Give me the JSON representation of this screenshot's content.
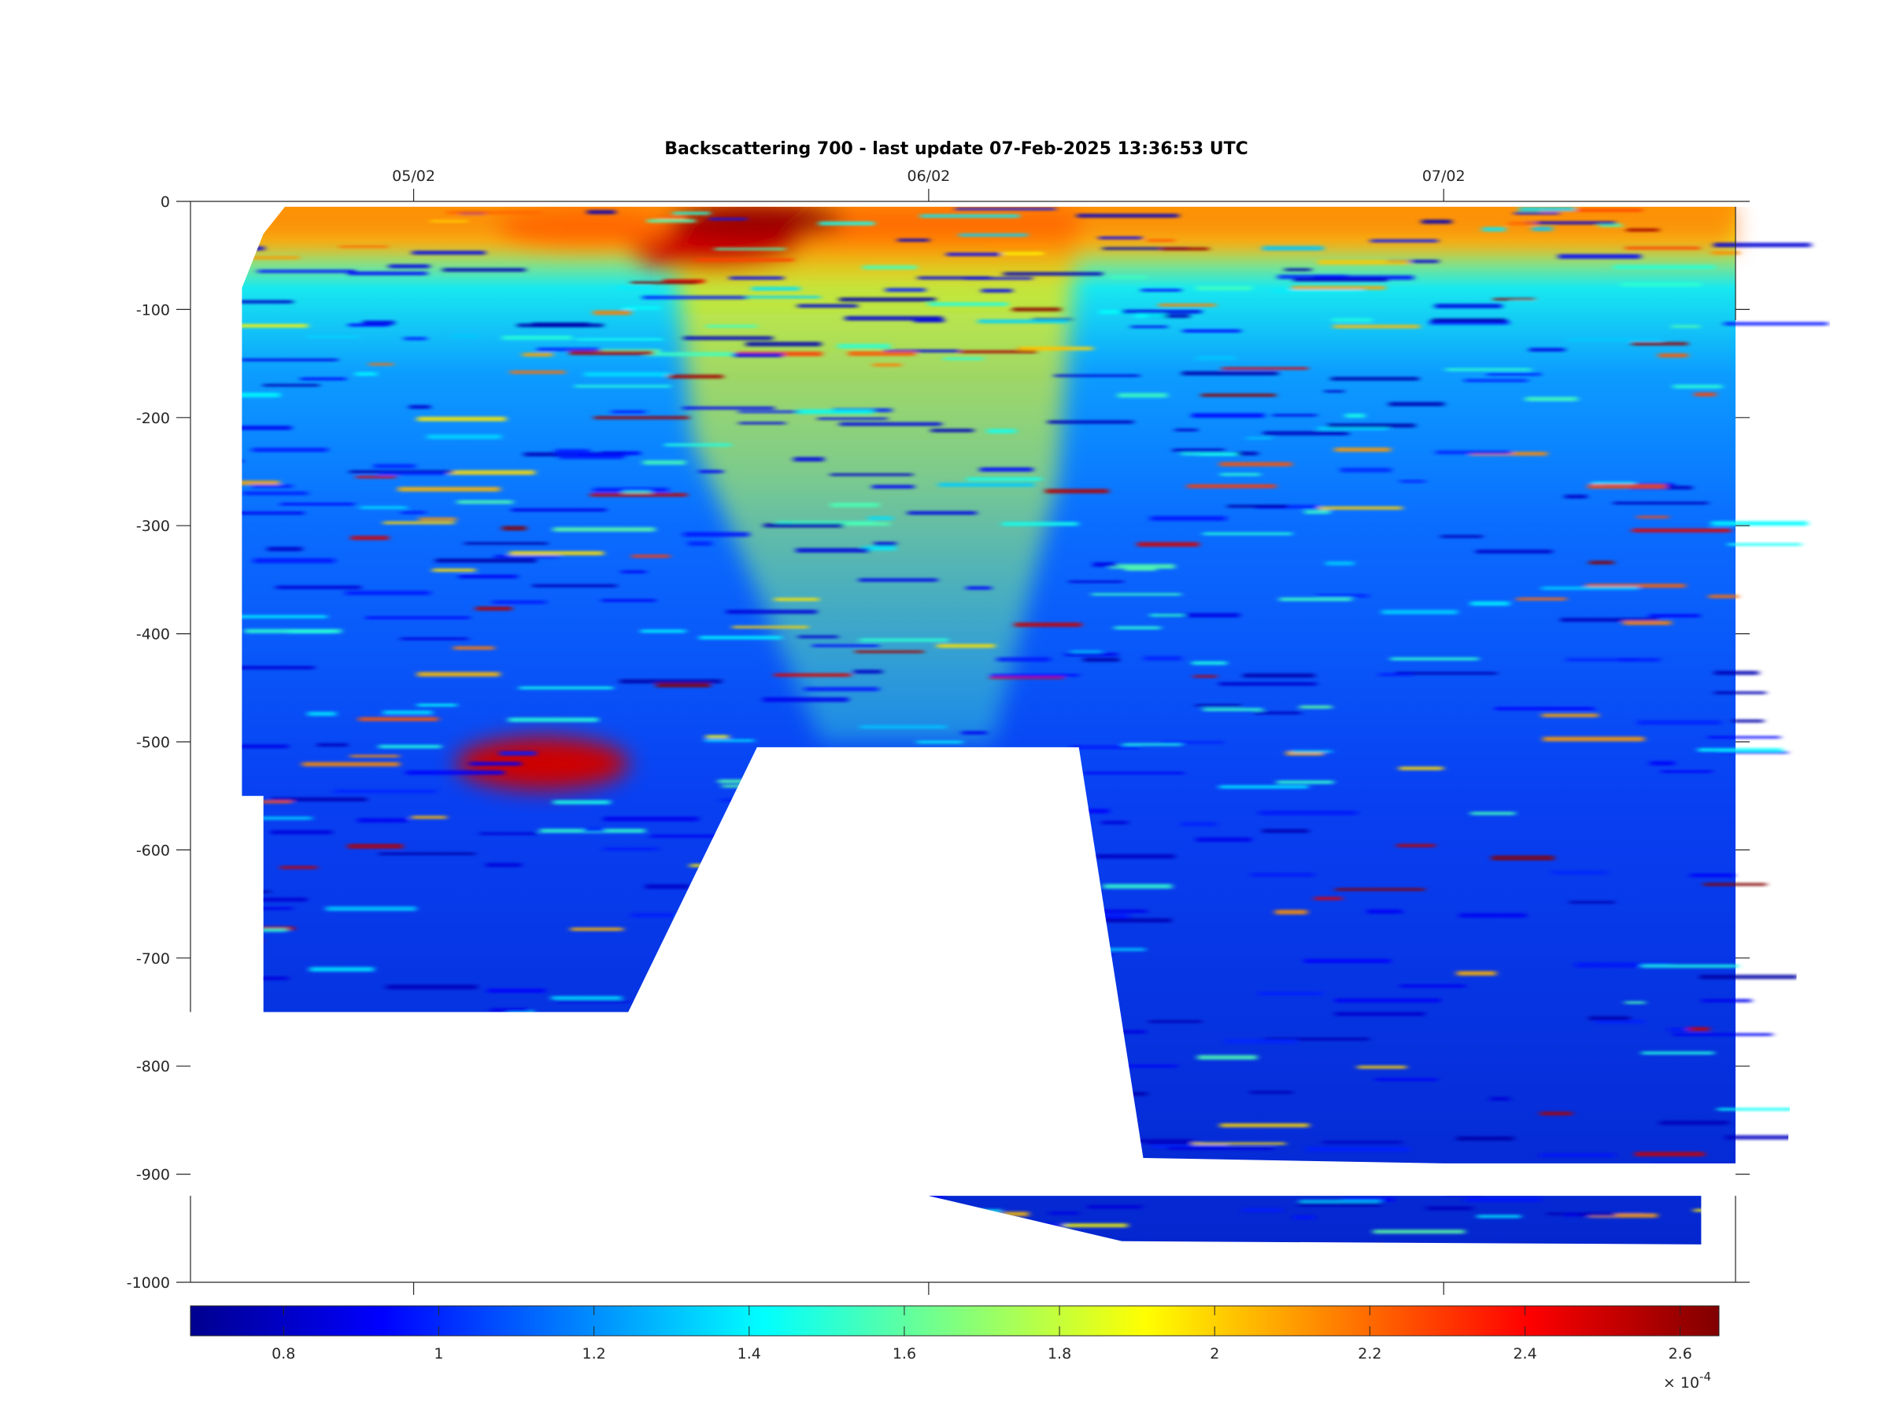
{
  "chart_data": {
    "type": "heatmap",
    "title": "Backscattering 700 - last update 07-Feb-2025 13:36:53 UTC",
    "x_axis": {
      "location": "top",
      "type": "date",
      "ticks": [
        {
          "value": "2025-02-05",
          "label": "05/02"
        },
        {
          "value": "2025-02-06",
          "label": "06/02"
        },
        {
          "value": "2025-02-07",
          "label": "07/02"
        }
      ],
      "range": [
        "2025-02-04 13:36",
        "2025-02-07 13:36"
      ]
    },
    "y_axis": {
      "ticks": [
        0,
        -100,
        -200,
        -300,
        -400,
        -500,
        -600,
        -700,
        -800,
        -900,
        -1000
      ],
      "range": [
        -1000,
        0
      ]
    },
    "colorbar": {
      "colormap": "jet",
      "ticks": [
        0.8,
        1,
        1.2,
        1.4,
        1.6,
        1.8,
        2,
        2.2,
        2.4,
        2.6
      ],
      "range": [
        0.68,
        2.65
      ],
      "multiplier_base": "× 10",
      "multiplier_exponent": "-4"
    },
    "grid": false,
    "data_coverage": {
      "main_section": [
        [
          "2025-02-04 16:00",
          -80
        ],
        [
          "2025-02-04 17:00",
          -30
        ],
        [
          "2025-02-04 18:00",
          -5
        ],
        [
          "2025-02-07 18:00",
          -5
        ],
        [
          "2025-02-07 18:00",
          -200
        ],
        [
          "2025-02-07 17:30",
          -310
        ],
        [
          "2025-02-07 16:00",
          -890
        ],
        [
          "2025-02-07 00:00",
          -890
        ],
        [
          "2025-02-06 10:00",
          -885
        ],
        [
          "2025-02-06 07:00",
          -505
        ],
        [
          "2025-02-05 16:00",
          -505
        ],
        [
          "2025-02-05 10:00",
          -750
        ],
        [
          "2025-02-04 17:00",
          -750
        ],
        [
          "2025-02-04 17:00",
          -550
        ],
        [
          "2025-02-04 16:00",
          -550
        ]
      ],
      "deep_section": [
        [
          "2025-02-06 00:00",
          -920
        ],
        [
          "2025-02-07 12:00",
          -920
        ],
        [
          "2025-02-07 12:00",
          -965
        ],
        [
          "2025-02-06 09:00",
          -962
        ]
      ],
      "high_backscatter_zones": [
        {
          "time": "2025-02-05 14:00",
          "depth_range": [
            -20,
            -60
          ],
          "level": 2.5
        },
        {
          "time": "2025-02-05 16:00",
          "depth_range": [
            -5,
            -30
          ],
          "level": 2.6
        },
        {
          "time": "2025-02-05 08:00",
          "depth_range": [
            -5,
            -40
          ],
          "level": 2.2
        },
        {
          "time": "2025-02-05 06:00",
          "depth_range": [
            -500,
            -540
          ],
          "level": 2.5
        }
      ]
    }
  }
}
